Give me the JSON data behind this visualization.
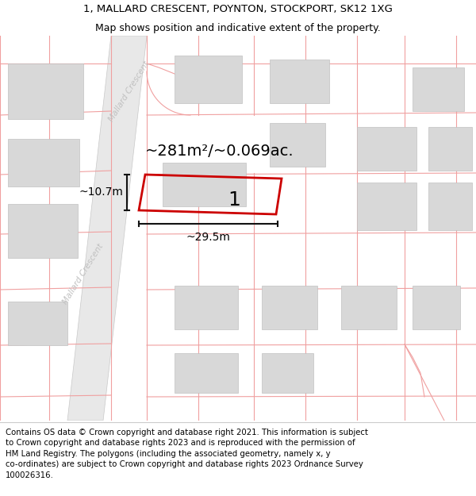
{
  "title_line1": "1, MALLARD CRESCENT, POYNTON, STOCKPORT, SK12 1XG",
  "title_line2": "Map shows position and indicative extent of the property.",
  "footer_text": "Contains OS data © Crown copyright and database right 2021. This information is subject\nto Crown copyright and database rights 2023 and is reproduced with the permission of\nHM Land Registry. The polygons (including the associated geometry, namely x, y\nco-ordinates) are subject to Crown copyright and database rights 2023 Ordnance Survey\n100026316.",
  "area_label": "~281m²/~0.069ac.",
  "plot_number": "1",
  "width_label": "~29.5m",
  "height_label": "~10.7m",
  "street_label": "Mallard Crescent",
  "bg_color": "#ffffff",
  "map_bg": "#ffffff",
  "road_fill": "#e8e8e8",
  "road_edge": "#c8c8c8",
  "plot_color": "#cc0000",
  "building_fill": "#d8d8d8",
  "building_edge": "#c0c0c0",
  "cadastral_color": "#f0a0a0",
  "street_text_color": "#c0c0c0",
  "dim_color": "#111111",
  "title_fontsize": 9.5,
  "subtitle_fontsize": 9.0,
  "footer_fontsize": 7.3,
  "area_fontsize": 14,
  "plot_num_fontsize": 18,
  "dim_fontsize": 10
}
